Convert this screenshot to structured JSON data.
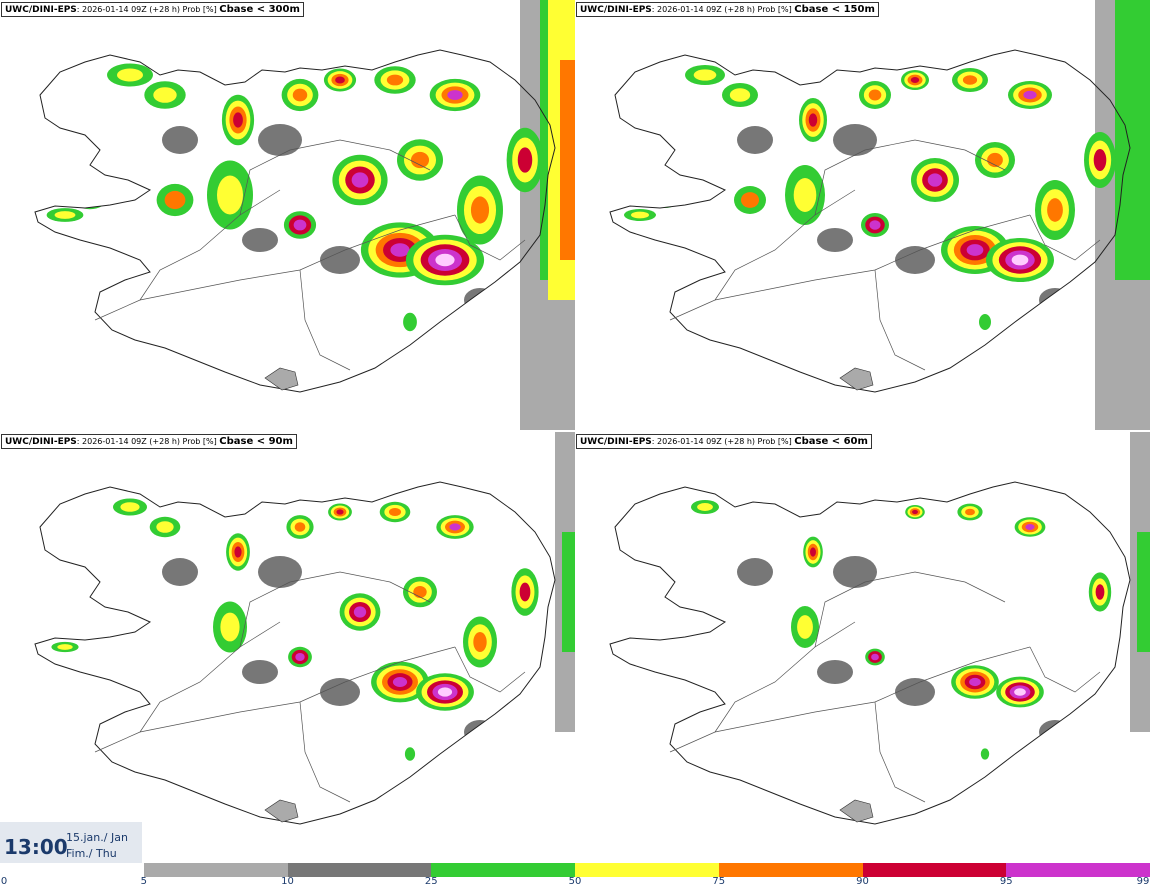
{
  "panels": [
    {
      "source": "UWC/DINI-EPS",
      "meta": ": 2026-01-14 09Z (+28 h) Prob [%] ",
      "variable": "Cbase < 300m",
      "intensity": 4
    },
    {
      "source": "UWC/DINI-EPS",
      "meta": ": 2026-01-14 09Z (+28 h) Prob [%] ",
      "variable": "Cbase < 150m",
      "intensity": 3
    },
    {
      "source": "UWC/DINI-EPS",
      "meta": ": 2026-01-14 09Z (+28 h) Prob [%] ",
      "variable": "Cbase < 90m",
      "intensity": 2
    },
    {
      "source": "UWC/DINI-EPS",
      "meta": ": 2026-01-14 09Z (+28 h) Prob [%] ",
      "variable": "Cbase < 60m",
      "intensity": 1
    }
  ],
  "time": {
    "hour": "13:00",
    "date_line1": "15.jan./ Jan",
    "date_line2": "Fim./ Thu"
  },
  "colorbar": {
    "ticks": [
      "0",
      "5",
      "10",
      "25",
      "50",
      "75",
      "90",
      "95",
      "99"
    ],
    "colors": [
      "#ffffff",
      "#aaaaaa",
      "#777777",
      "#33cc33",
      "#ffff33",
      "#ff7700",
      "#cc0033",
      "#cc33cc",
      "#ffccff"
    ]
  }
}
